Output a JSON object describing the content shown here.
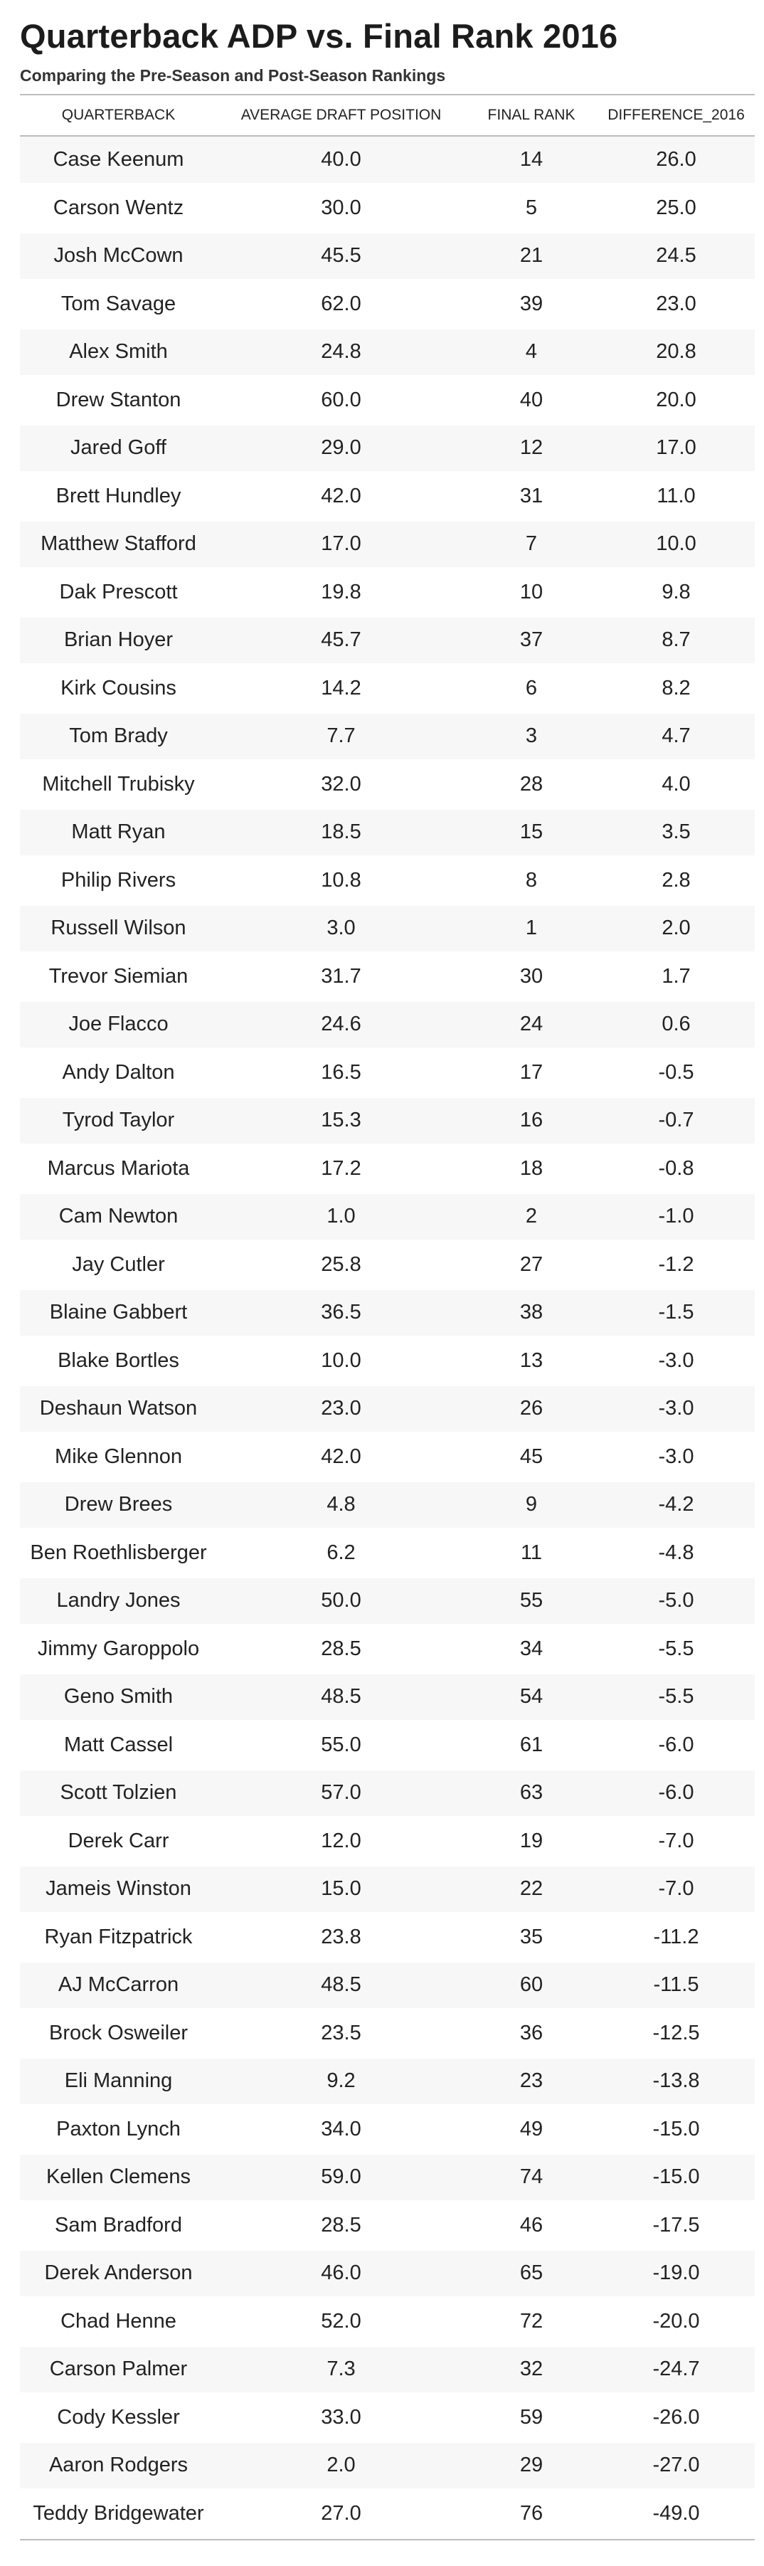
{
  "title": "Quarterback ADP vs. Final Rank 2016",
  "subtitle": "Comparing the Pre-Season and Post-Season Rankings",
  "columns": [
    "QUARTERBACK",
    "AVERAGE DRAFT POSITION",
    "FINAL RANK",
    "DIFFERENCE_2016"
  ],
  "rows": [
    [
      "Case Keenum",
      "40.0",
      "14",
      "26.0"
    ],
    [
      "Carson Wentz",
      "30.0",
      "5",
      "25.0"
    ],
    [
      "Josh McCown",
      "45.5",
      "21",
      "24.5"
    ],
    [
      "Tom Savage",
      "62.0",
      "39",
      "23.0"
    ],
    [
      "Alex Smith",
      "24.8",
      "4",
      "20.8"
    ],
    [
      "Drew Stanton",
      "60.0",
      "40",
      "20.0"
    ],
    [
      "Jared Goff",
      "29.0",
      "12",
      "17.0"
    ],
    [
      "Brett Hundley",
      "42.0",
      "31",
      "11.0"
    ],
    [
      "Matthew Stafford",
      "17.0",
      "7",
      "10.0"
    ],
    [
      "Dak Prescott",
      "19.8",
      "10",
      "9.8"
    ],
    [
      "Brian Hoyer",
      "45.7",
      "37",
      "8.7"
    ],
    [
      "Kirk Cousins",
      "14.2",
      "6",
      "8.2"
    ],
    [
      "Tom Brady",
      "7.7",
      "3",
      "4.7"
    ],
    [
      "Mitchell Trubisky",
      "32.0",
      "28",
      "4.0"
    ],
    [
      "Matt Ryan",
      "18.5",
      "15",
      "3.5"
    ],
    [
      "Philip Rivers",
      "10.8",
      "8",
      "2.8"
    ],
    [
      "Russell Wilson",
      "3.0",
      "1",
      "2.0"
    ],
    [
      "Trevor Siemian",
      "31.7",
      "30",
      "1.7"
    ],
    [
      "Joe Flacco",
      "24.6",
      "24",
      "0.6"
    ],
    [
      "Andy Dalton",
      "16.5",
      "17",
      "-0.5"
    ],
    [
      "Tyrod Taylor",
      "15.3",
      "16",
      "-0.7"
    ],
    [
      "Marcus Mariota",
      "17.2",
      "18",
      "-0.8"
    ],
    [
      "Cam Newton",
      "1.0",
      "2",
      "-1.0"
    ],
    [
      "Jay Cutler",
      "25.8",
      "27",
      "-1.2"
    ],
    [
      "Blaine Gabbert",
      "36.5",
      "38",
      "-1.5"
    ],
    [
      "Blake Bortles",
      "10.0",
      "13",
      "-3.0"
    ],
    [
      "Deshaun Watson",
      "23.0",
      "26",
      "-3.0"
    ],
    [
      "Mike Glennon",
      "42.0",
      "45",
      "-3.0"
    ],
    [
      "Drew Brees",
      "4.8",
      "9",
      "-4.2"
    ],
    [
      "Ben Roethlisberger",
      "6.2",
      "11",
      "-4.8"
    ],
    [
      "Landry Jones",
      "50.0",
      "55",
      "-5.0"
    ],
    [
      "Jimmy Garoppolo",
      "28.5",
      "34",
      "-5.5"
    ],
    [
      "Geno Smith",
      "48.5",
      "54",
      "-5.5"
    ],
    [
      "Matt Cassel",
      "55.0",
      "61",
      "-6.0"
    ],
    [
      "Scott Tolzien",
      "57.0",
      "63",
      "-6.0"
    ],
    [
      "Derek Carr",
      "12.0",
      "19",
      "-7.0"
    ],
    [
      "Jameis Winston",
      "15.0",
      "22",
      "-7.0"
    ],
    [
      "Ryan Fitzpatrick",
      "23.8",
      "35",
      "-11.2"
    ],
    [
      "AJ McCarron",
      "48.5",
      "60",
      "-11.5"
    ],
    [
      "Brock Osweiler",
      "23.5",
      "36",
      "-12.5"
    ],
    [
      "Eli Manning",
      "9.2",
      "23",
      "-13.8"
    ],
    [
      "Paxton Lynch",
      "34.0",
      "49",
      "-15.0"
    ],
    [
      "Kellen Clemens",
      "59.0",
      "74",
      "-15.0"
    ],
    [
      "Sam Bradford",
      "28.5",
      "46",
      "-17.5"
    ],
    [
      "Derek Anderson",
      "46.0",
      "65",
      "-19.0"
    ],
    [
      "Chad Henne",
      "52.0",
      "72",
      "-20.0"
    ],
    [
      "Carson Palmer",
      "7.3",
      "32",
      "-24.7"
    ],
    [
      "Cody Kessler",
      "33.0",
      "59",
      "-26.0"
    ],
    [
      "Aaron Rodgers",
      "2.0",
      "29",
      "-27.0"
    ],
    [
      "Teddy Bridgewater",
      "27.0",
      "76",
      "-49.0"
    ]
  ]
}
